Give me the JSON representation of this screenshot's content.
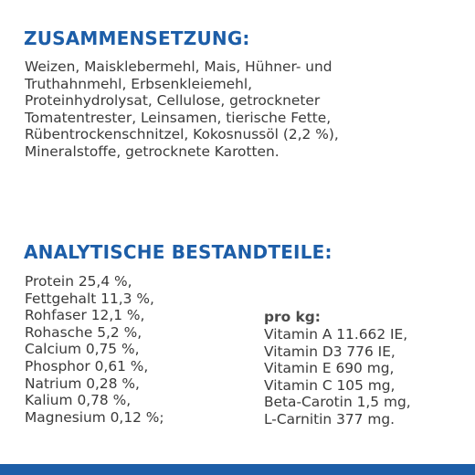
{
  "composition": {
    "heading": "ZUSAMMENSETZUNG:",
    "lines": [
      "Weizen, Maisklebermehl, Mais, Hühner- und",
      "Truthahnmehl, Erbsenkleiemehl,",
      "Proteinhydrolysat, Cellulose, getrockneter",
      "Tomatentrester, Leinsamen, tierische Fette,",
      "Rübentrockenschnitzel, Kokosnussöl (2,2 %),",
      "Mineralstoffe, getrocknete Karotten."
    ]
  },
  "analytic": {
    "heading": "ANALYTISCHE BESTANDTEILE:",
    "constituents": [
      "Protein 25,4 %,",
      "Fettgehalt 11,3 %,",
      "Rohfaser 12,1 %,",
      "Rohasche 5,2 %,",
      "Calcium 0,75 %,",
      "Phosphor 0,61 %,",
      "Natrium 0,28 %,",
      "Kalium 0,78 %,",
      "Magnesium 0,12 %;"
    ],
    "per_kg_label": "pro kg:",
    "per_kg": [
      "Vitamin A 11.662 IE,",
      "Vitamin D3 776 IE,",
      "Vitamin E 690 mg,",
      "Vitamin C 105 mg,",
      "Beta-Carotin 1,5 mg,",
      "L-Carnitin 377 mg."
    ]
  },
  "colors": {
    "heading": "#1d5ea8",
    "text": "#3a3a3a",
    "bar": "#1d5ea8"
  }
}
